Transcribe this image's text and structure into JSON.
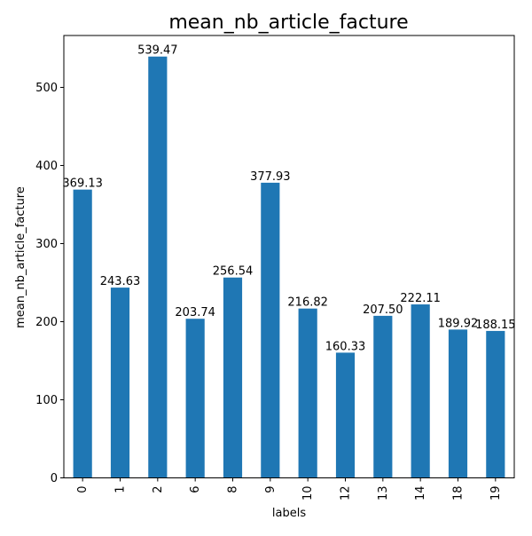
{
  "chart_data": {
    "type": "bar",
    "title": "mean_nb_article_facture",
    "xlabel": "labels",
    "ylabel": "mean_nb_article_facture",
    "categories": [
      "0",
      "1",
      "2",
      "6",
      "8",
      "9",
      "10",
      "12",
      "13",
      "14",
      "18",
      "19"
    ],
    "values": [
      369.13,
      243.63,
      539.47,
      203.74,
      256.54,
      377.93,
      216.82,
      160.33,
      207.5,
      222.11,
      189.92,
      188.15
    ],
    "data_labels": [
      "369.13",
      "243.63",
      "539.47",
      "203.74",
      "256.54",
      "377.93",
      "216.82",
      "160.33",
      "207.50",
      "222.11",
      "189.92",
      "188.15"
    ],
    "yticks": [
      0,
      100,
      200,
      300,
      400,
      500
    ],
    "ylim": [
      0,
      566.44
    ],
    "grid": false,
    "legend": "none",
    "colors": {
      "bar": "#1f77b4",
      "axis": "#000000",
      "text": "#000000"
    }
  }
}
